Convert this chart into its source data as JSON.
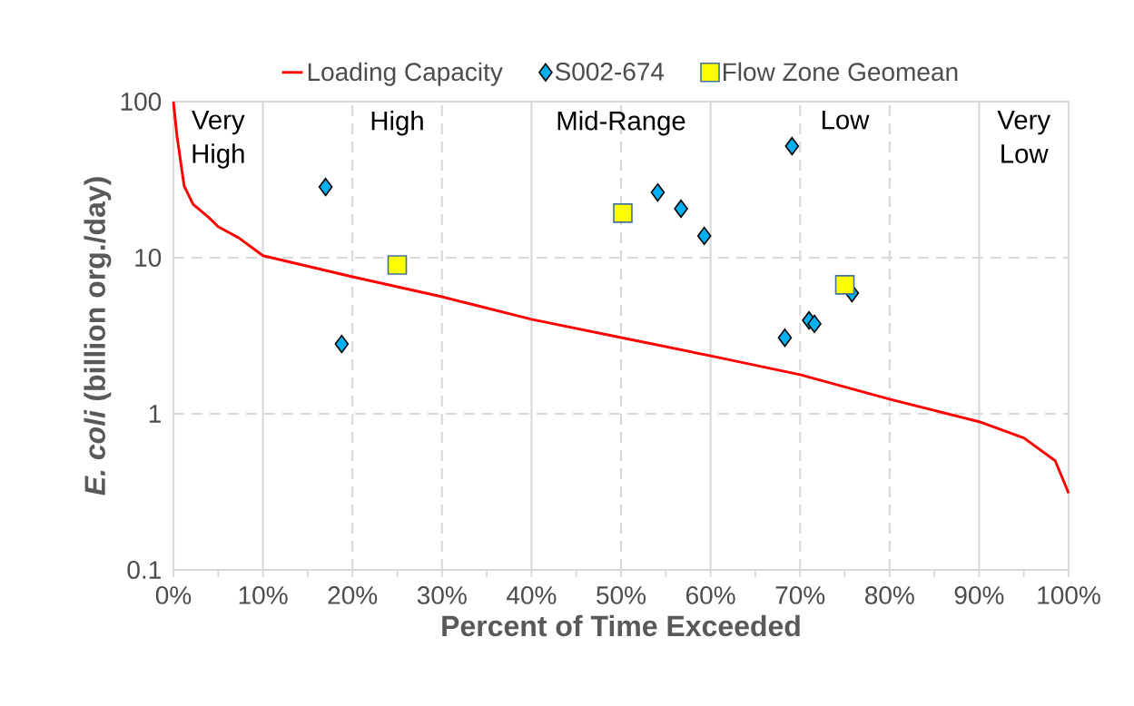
{
  "chart_data": {
    "type": "line",
    "xlabel": "Percent of Time Exceeded",
    "ylabel": "*E. coli* (billion org./day)",
    "log": "y",
    "grid": "y",
    "legend": "top",
    "xlim": [
      0,
      100
    ],
    "ylim": [
      0.1,
      100
    ],
    "xticks": [
      {
        "value": 0,
        "label": "0%"
      },
      {
        "value": 10,
        "label": "10%"
      },
      {
        "value": 20,
        "label": "20%"
      },
      {
        "value": 30,
        "label": "30%"
      },
      {
        "value": 40,
        "label": "40%"
      },
      {
        "value": 50,
        "label": "50%"
      },
      {
        "value": 60,
        "label": "60%"
      },
      {
        "value": 70,
        "label": "70%"
      },
      {
        "value": 80,
        "label": "80%"
      },
      {
        "value": 90,
        "label": "90%"
      },
      {
        "value": 100,
        "label": "100%"
      }
    ],
    "yticks": [
      0.1,
      1,
      10,
      100
    ],
    "series": [
      {
        "name": "Loading Capacity",
        "color": "#ff0000",
        "marker": "none",
        "line_style": "solid",
        "x": [
          0,
          0.4,
          1.2,
          2.2,
          4,
          5,
          7.3,
          10,
          20,
          30,
          40,
          50,
          60,
          70,
          80,
          90,
          95,
          98.5,
          100
        ],
        "values": [
          100,
          60,
          28.8,
          22,
          18,
          15.8,
          13.4,
          10.3,
          7.55,
          5.62,
          4.03,
          3.08,
          2.35,
          1.78,
          1.24,
          0.89,
          0.7,
          0.5,
          0.31
        ]
      },
      {
        "name": "S002-674",
        "type": "scatter",
        "color": "#00b0f0",
        "marker": "diamond",
        "x": [
          17.0,
          18.8,
          54.1,
          56.7,
          59.3,
          69.1,
          68.3,
          71.0,
          71.6,
          75.8
        ],
        "values": [
          28.4,
          2.8,
          26.2,
          20.6,
          13.8,
          51.9,
          3.07,
          3.97,
          3.77,
          5.93
        ]
      },
      {
        "name": "Flow Zone Geomean",
        "type": "scatter",
        "color": "#ffff00",
        "marker": "square",
        "x": [
          25.0,
          50.2,
          75.0
        ],
        "values": [
          8.98,
          19.3,
          6.7
        ]
      }
    ],
    "ref_lines": [
      {
        "axis": "x",
        "value": 10,
        "color": "#d9d9d9",
        "line_style": "solid"
      },
      {
        "axis": "x",
        "value": 20,
        "color": "#d9d9d9",
        "line_style": "dashed"
      },
      {
        "axis": "x",
        "value": 30,
        "color": "#d9d9d9",
        "line_style": "dashed"
      },
      {
        "axis": "x",
        "value": 40,
        "color": "#d9d9d9",
        "line_style": "solid"
      },
      {
        "axis": "x",
        "value": 50,
        "color": "#d9d9d9",
        "line_style": "dashed"
      },
      {
        "axis": "x",
        "value": 60,
        "color": "#d9d9d9",
        "line_style": "solid"
      },
      {
        "axis": "x",
        "value": 70,
        "color": "#d9d9d9",
        "line_style": "dashed"
      },
      {
        "axis": "x",
        "value": 80,
        "color": "#d9d9d9",
        "line_style": "dashed"
      },
      {
        "axis": "x",
        "value": 90,
        "color": "#d9d9d9",
        "line_style": "solid"
      }
    ],
    "annotations": [
      "Very High",
      "High",
      "Mid-Range",
      "Low",
      "Very Low"
    ]
  }
}
